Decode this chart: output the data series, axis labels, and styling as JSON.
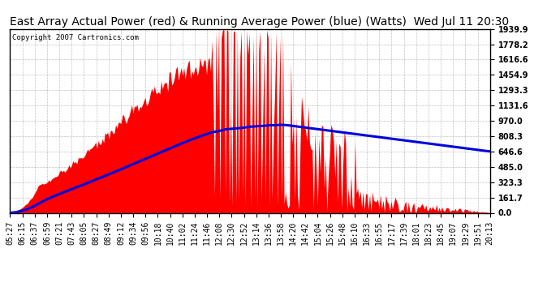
{
  "title": "East Array Actual Power (red) & Running Average Power (blue) (Watts)  Wed Jul 11 20:30",
  "copyright": "Copyright 2007 Cartronics.com",
  "ylabel_right": [
    "0.0",
    "161.7",
    "323.3",
    "485.0",
    "646.6",
    "808.3",
    "970.0",
    "1131.6",
    "1293.3",
    "1454.9",
    "1616.6",
    "1778.2",
    "1939.9"
  ],
  "ymax": 1939.9,
  "background_color": "#ffffff",
  "grid_color": "#999999",
  "red_color": "#ff0000",
  "blue_color": "#0000dd",
  "title_fontsize": 10,
  "tick_fontsize": 7,
  "num_points": 360
}
